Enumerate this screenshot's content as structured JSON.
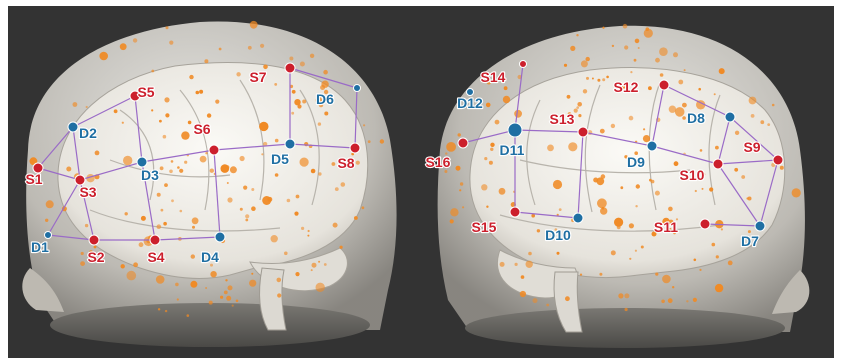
{
  "colors": {
    "background": "#333333",
    "source": "#cc1f2c",
    "detector": "#1f6fa3",
    "channel_line": "#9a6bc7",
    "scalp_dot": "#f08a24",
    "head_fill": "#d9d6d0",
    "brain_fill": "#eeece6"
  },
  "icons": {
    "source": "red-source-marker",
    "detector": "blue-detector-marker",
    "scalp_point": "orange-scalp-dot"
  },
  "left_view": {
    "sources": [
      "S1",
      "S2",
      "S3",
      "S4",
      "S5",
      "S6",
      "S7",
      "S8"
    ],
    "detectors": [
      "D1",
      "D2",
      "D3",
      "D4",
      "D5",
      "D6"
    ]
  },
  "right_view": {
    "sources": [
      "S9",
      "S10",
      "S11",
      "S12",
      "S13",
      "S14",
      "S15",
      "S16"
    ],
    "detectors": [
      "D7",
      "D8",
      "D9",
      "D10",
      "D11",
      "D12"
    ]
  }
}
